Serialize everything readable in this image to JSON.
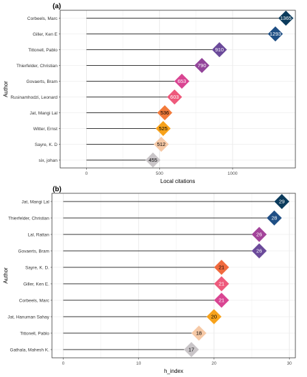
{
  "chart_data": [
    {
      "type": "lollipop",
      "panel_label": "(a)",
      "xlabel": "Local citations",
      "ylabel": "Author",
      "xlim": [
        -180,
        1430
      ],
      "xticks": [
        0,
        500,
        1000
      ],
      "grid": true,
      "points": [
        {
          "name": "Corbeels, Marc",
          "value": 1365,
          "color": "#0b3b5c",
          "label_color": "#ffffff"
        },
        {
          "name": "Giller, Ken E",
          "value": 1293,
          "color": "#1f4f85",
          "label_color": "#ffffff"
        },
        {
          "name": "Tittonell, Pablo",
          "value": 910,
          "color": "#6b4a9a",
          "label_color": "#ffffff"
        },
        {
          "name": "Thierfelder, Christian",
          "value": 790,
          "color": "#93449a",
          "label_color": "#ffffff"
        },
        {
          "name": "Govaerts, Bram",
          "value": 653,
          "color": "#d94592",
          "label_color": "#ffffff"
        },
        {
          "name": "Rusinamhodzi, Leonard",
          "value": 603,
          "color": "#ee5a7c",
          "label_color": "#ffffff"
        },
        {
          "name": "Jat, Mangi Lal",
          "value": 536,
          "color": "#f27a3a",
          "label_color": "#000000"
        },
        {
          "name": "Witter, Ernst",
          "value": 525,
          "color": "#f7a21b",
          "label_color": "#000000"
        },
        {
          "name": "Sayre, K. D",
          "value": 512,
          "color": "#f6c9a6",
          "label_color": "#000000"
        },
        {
          "name": "six, johan",
          "value": 455,
          "color": "#c9c5c8",
          "label_color": "#000000"
        }
      ]
    },
    {
      "type": "lollipop",
      "panel_label": "(b)",
      "xlabel": "h_index",
      "ylabel": "Author",
      "xlim": [
        -1.5,
        30.8
      ],
      "xticks": [
        0,
        10,
        20,
        30
      ],
      "grid": true,
      "points": [
        {
          "name": "Jat, Mangi Lal",
          "value": 29,
          "color": "#0b3b5c",
          "label_color": "#ffffff"
        },
        {
          "name": "Thierfelder, Christian",
          "value": 28,
          "color": "#1f4f85",
          "label_color": "#ffffff"
        },
        {
          "name": "Lal, Rattan",
          "value": 26,
          "color": "#a3449a",
          "label_color": "#ffffff"
        },
        {
          "name": "Govaerts, Bram",
          "value": 26,
          "color": "#6b4a9a",
          "label_color": "#ffffff"
        },
        {
          "name": "Sayre, K. D.",
          "value": 21,
          "color": "#f06a3e",
          "label_color": "#000000"
        },
        {
          "name": "Giller, Ken E.",
          "value": 21,
          "color": "#ee5a7c",
          "label_color": "#ffffff"
        },
        {
          "name": "Corbeels, Marc",
          "value": 21,
          "color": "#d94592",
          "label_color": "#ffffff"
        },
        {
          "name": "Jat, Hanuman Sahay",
          "value": 20,
          "color": "#f7a21b",
          "label_color": "#000000"
        },
        {
          "name": "Tittonell, Pablo",
          "value": 18,
          "color": "#f6c9a6",
          "label_color": "#000000"
        },
        {
          "name": "Gathala, Mahesh K.",
          "value": 17,
          "color": "#c9c5c8",
          "label_color": "#000000"
        }
      ]
    }
  ]
}
